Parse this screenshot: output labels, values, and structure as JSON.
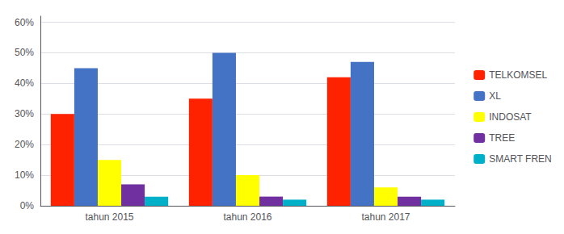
{
  "chart_data": {
    "type": "bar",
    "categories": [
      "tahun 2015",
      "tahun 2016",
      "tahun 2017"
    ],
    "series": [
      {
        "name": "TELKOMSEL",
        "color": "#FF2200",
        "values": [
          0.3,
          0.35,
          0.42
        ]
      },
      {
        "name": "XL",
        "color": "#4472C4",
        "values": [
          0.45,
          0.5,
          0.47
        ]
      },
      {
        "name": "INDOSAT",
        "color": "#FFFF00",
        "values": [
          0.15,
          0.1,
          0.06
        ]
      },
      {
        "name": "TREE",
        "color": "#7030A0",
        "values": [
          0.07,
          0.03,
          0.03
        ]
      },
      {
        "name": "SMART FREN",
        "color": "#00B0C8",
        "values": [
          0.03,
          0.02,
          0.02
        ]
      }
    ],
    "ylim": [
      0.0,
      0.62
    ],
    "yticks": [
      {
        "value": 0.0,
        "label": "0%"
      },
      {
        "value": 0.1,
        "label": "10%"
      },
      {
        "value": 0.2,
        "label": "20%"
      },
      {
        "value": 0.3,
        "label": "30%"
      },
      {
        "value": 0.4,
        "label": "40%"
      },
      {
        "value": 0.5,
        "label": "50%"
      },
      {
        "value": 0.6,
        "label": "60%"
      }
    ],
    "grid": true,
    "legend": "right"
  }
}
